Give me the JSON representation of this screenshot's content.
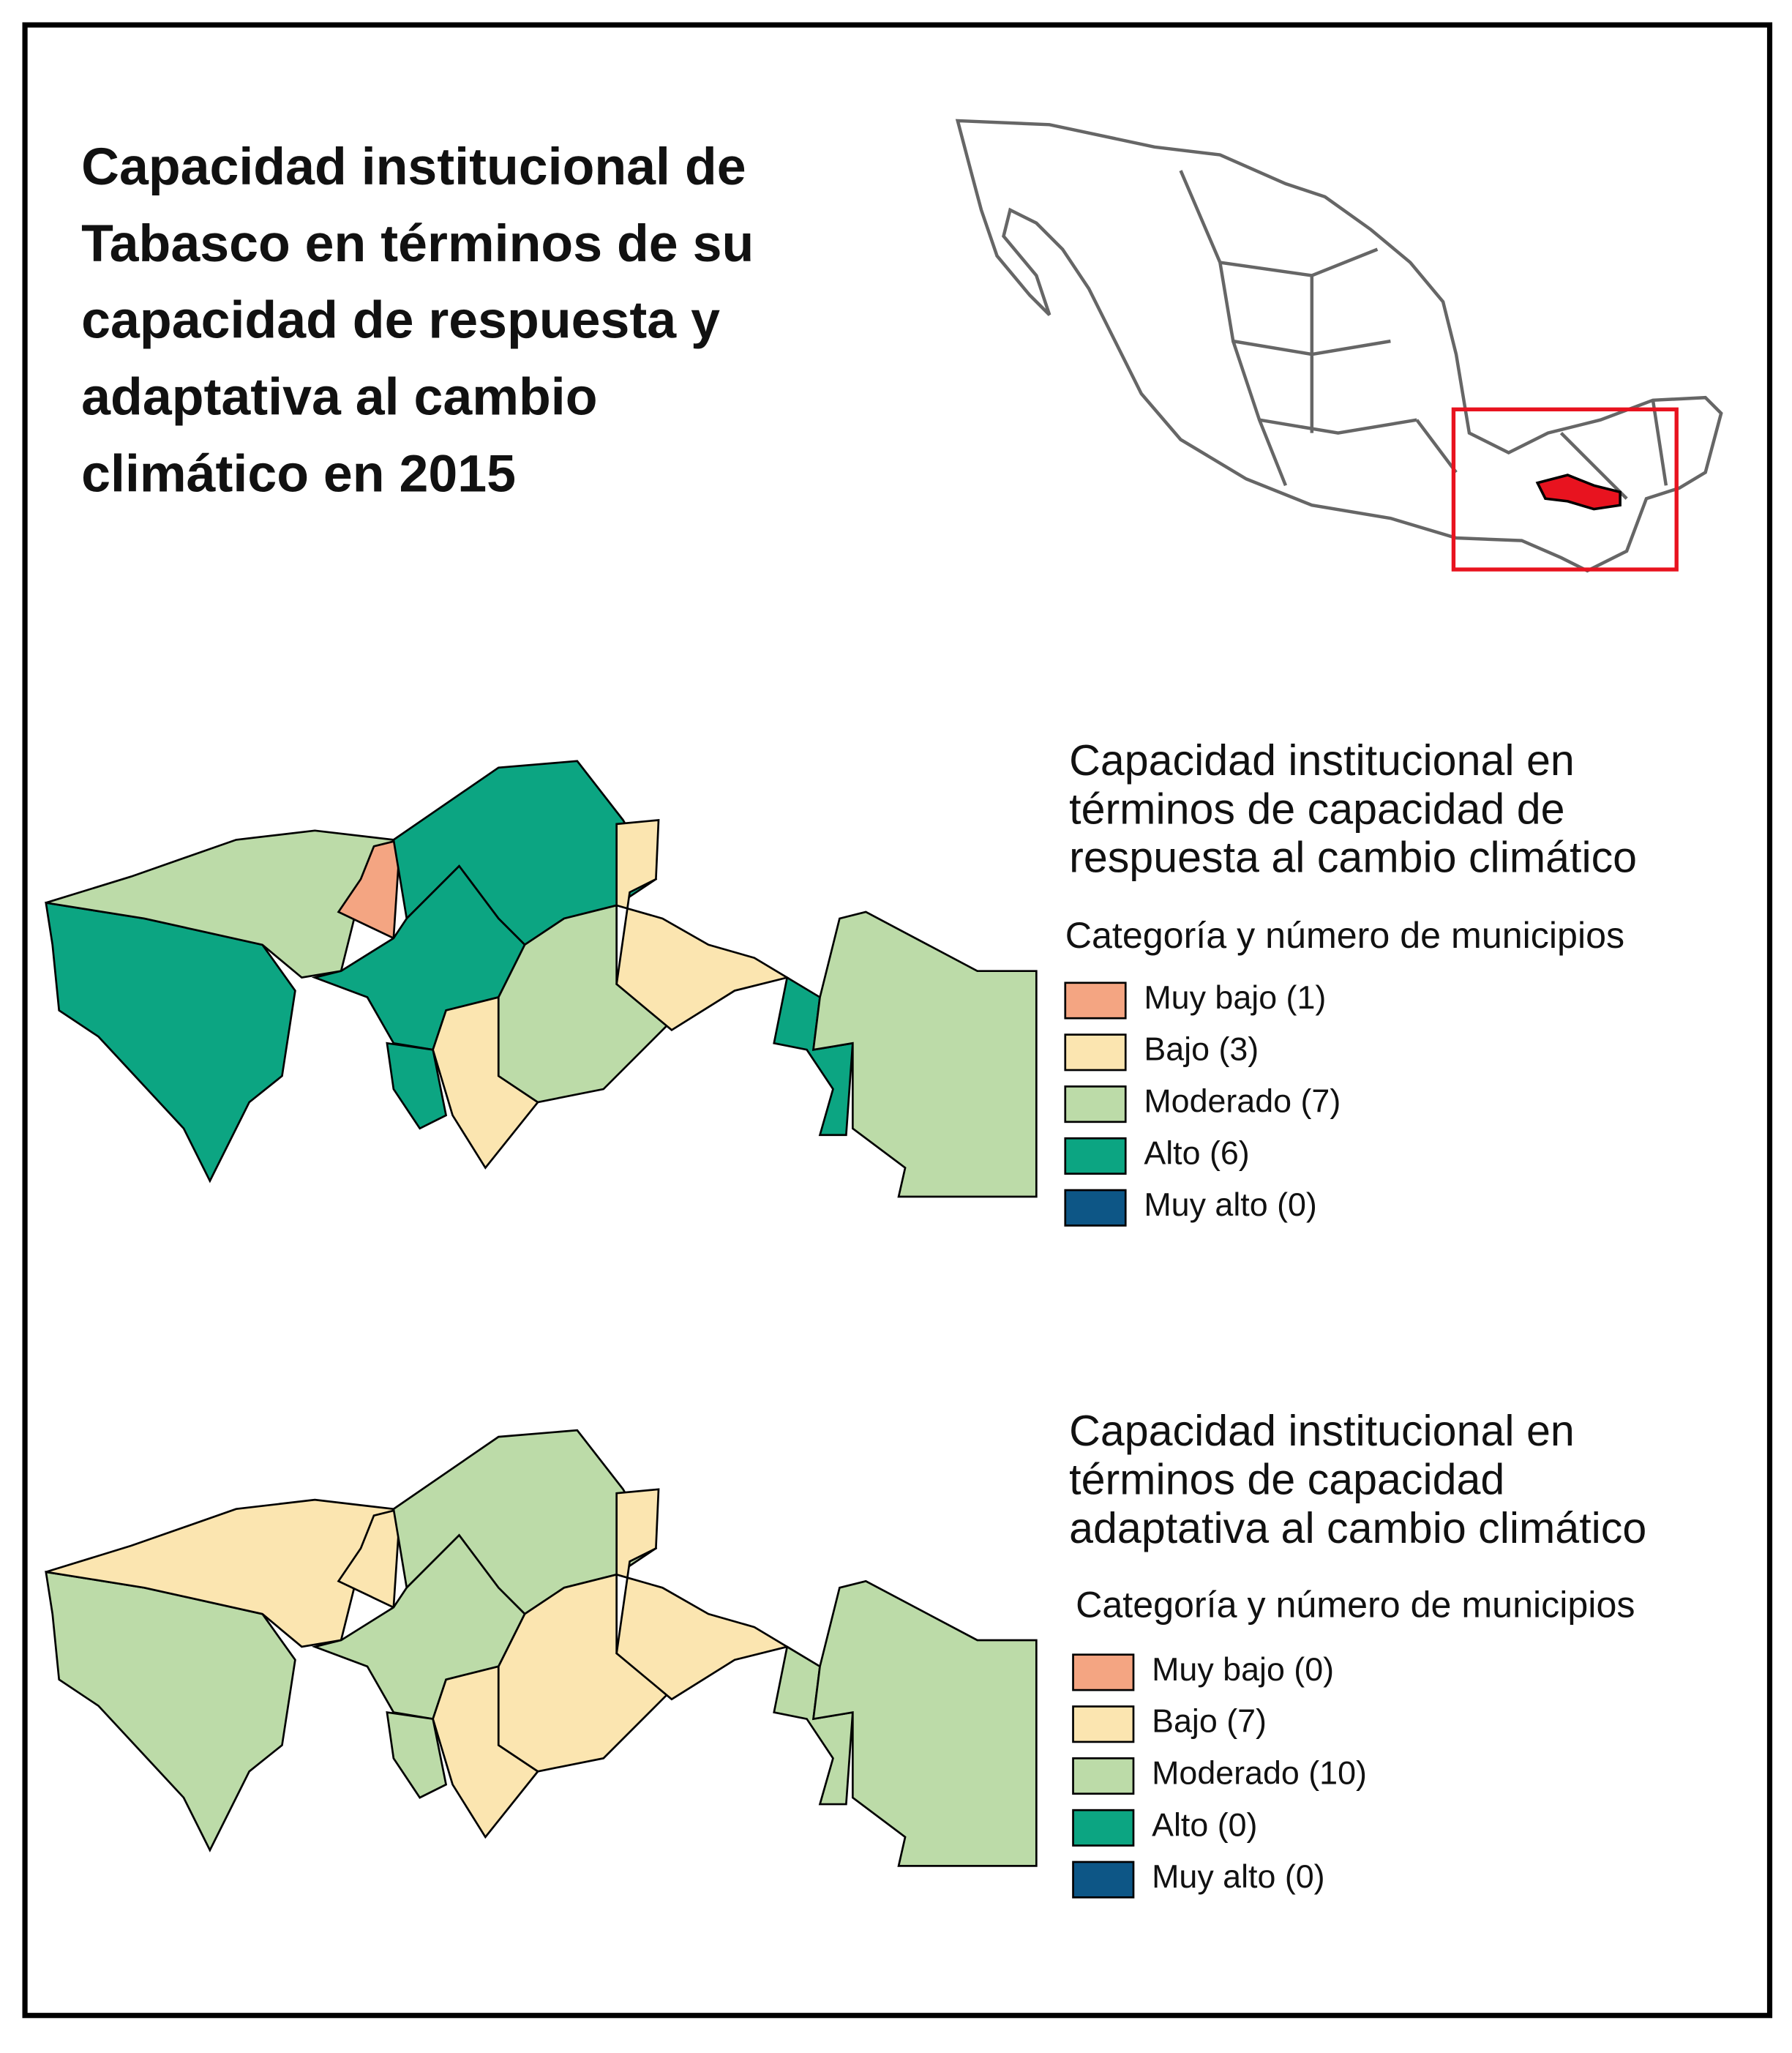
{
  "title": [
    "Capacidad institucional de",
    "Tabasco en términos de su",
    "capacidad de respuesta y",
    "adaptativa al cambio",
    "climático en 2015"
  ],
  "maps": [
    {
      "legend_title": [
        "Capacidad institucional en",
        "términos de capacidad de",
        "respuesta al cambio climático"
      ],
      "legend_subtitle": "Categoría y número de municipios",
      "items": [
        {
          "label": "Muy bajo (1)",
          "color": "#f4a582"
        },
        {
          "label": "Bajo (3)",
          "color": "#fbe5b0"
        },
        {
          "label": "Moderado (7)",
          "color": "#bcdba8"
        },
        {
          "label": "Alto (6)",
          "color": "#0ca582"
        },
        {
          "label": "Muy alto (0)",
          "color": "#0d5686"
        }
      ]
    },
    {
      "legend_title": [
        "Capacidad institucional en",
        "términos de capacidad",
        "adaptativa al cambio climático"
      ],
      "legend_subtitle": "Categoría y número de municipios",
      "items": [
        {
          "label": "Muy bajo (0)",
          "color": "#f4a582"
        },
        {
          "label": "Bajo (7)",
          "color": "#fbe5b0"
        },
        {
          "label": "Moderado (10)",
          "color": "#bcdba8"
        },
        {
          "label": "Alto (0)",
          "color": "#0ca582"
        },
        {
          "label": "Muy alto (0)",
          "color": "#0d5686"
        }
      ]
    }
  ]
}
